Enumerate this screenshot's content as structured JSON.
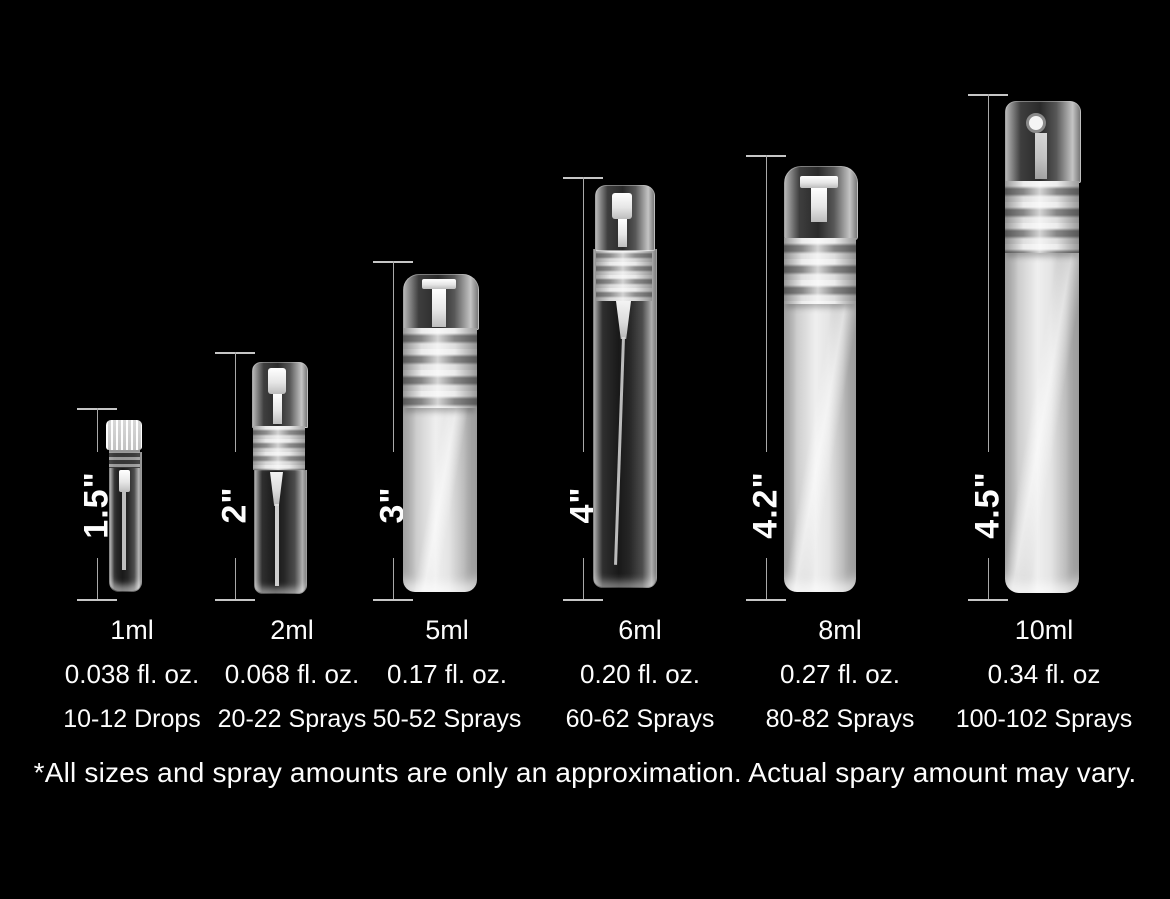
{
  "colors": {
    "background": "#000000",
    "text": "#ffffff",
    "measure_line": "#a9a9a9"
  },
  "bottles": [
    {
      "volume": "1ml",
      "height": "1.5\"",
      "fl_oz": "0.038 fl. oz.",
      "amount": "10-12 Drops"
    },
    {
      "volume": "2ml",
      "height": "2\"",
      "fl_oz": "0.068 fl. oz.",
      "amount": "20-22 Sprays"
    },
    {
      "volume": "5ml",
      "height": "3\"",
      "fl_oz": "0.17 fl. oz.",
      "amount": "50-52 Sprays"
    },
    {
      "volume": "6ml",
      "height": "4\"",
      "fl_oz": "0.20 fl. oz.",
      "amount": "60-62 Sprays"
    },
    {
      "volume": "8ml",
      "height": "4.2\"",
      "fl_oz": "0.27 fl. oz.",
      "amount": "80-82 Sprays"
    },
    {
      "volume": "10ml",
      "height": "4.5\"",
      "fl_oz": "0.34 fl. oz",
      "amount": "100-102 Sprays"
    }
  ],
  "disclaimer": "*All sizes and spray amounts are only an approximation. Actual spary amount may vary."
}
